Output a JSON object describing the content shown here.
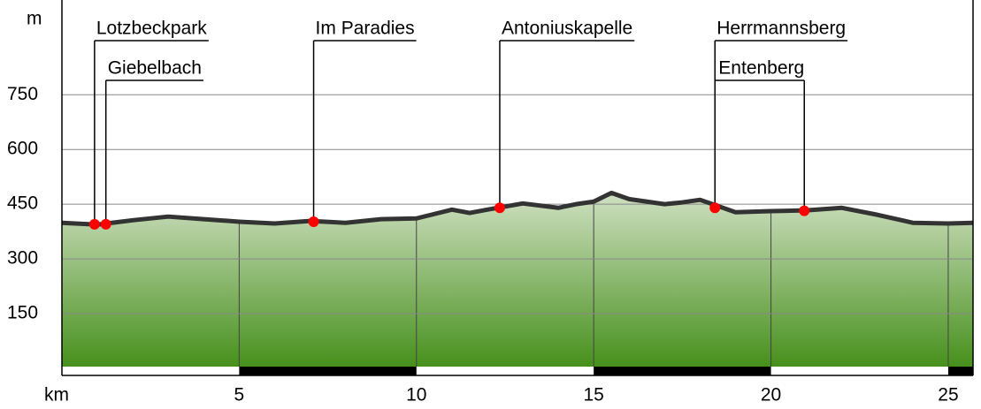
{
  "chart_data": {
    "type": "area",
    "y_label": "m",
    "x_label": "km",
    "x": [
      0,
      1,
      2,
      3,
      4,
      5,
      6,
      7,
      8,
      9,
      10,
      11,
      11.5,
      12,
      13,
      14,
      14.5,
      15,
      15.5,
      16,
      17,
      17.5,
      18,
      19,
      20,
      21,
      22,
      23,
      24,
      25,
      25.7
    ],
    "values": [
      399,
      394,
      406,
      416,
      409,
      402,
      397,
      404,
      399,
      409,
      411,
      435,
      426,
      435,
      452,
      440,
      450,
      457,
      481,
      464,
      450,
      455,
      462,
      428,
      431,
      433,
      440,
      421,
      399,
      397,
      399
    ],
    "color": "#333333",
    "xlim": [
      0,
      25.7
    ],
    "ylim": [
      0,
      1000
    ],
    "xticks": [
      5,
      10,
      15,
      20,
      25
    ],
    "yticks": [
      150,
      300,
      450,
      600,
      750
    ],
    "grid": true,
    "points": [
      {
        "label": "Lotzbeckpark",
        "x": 0.92,
        "y": 395
      },
      {
        "label": "Giebelbach",
        "x": 1.24,
        "y": 395
      },
      {
        "label": "Im Paradies",
        "x": 7.1,
        "y": 402
      },
      {
        "label": "Antoniuskapelle",
        "x": 12.35,
        "y": 440
      },
      {
        "label": "Herrmannsberg",
        "x": 18.42,
        "y": 440
      },
      {
        "label": "Entenberg",
        "x": 20.94,
        "y": 432
      }
    ],
    "point_color": "#ff0000"
  }
}
